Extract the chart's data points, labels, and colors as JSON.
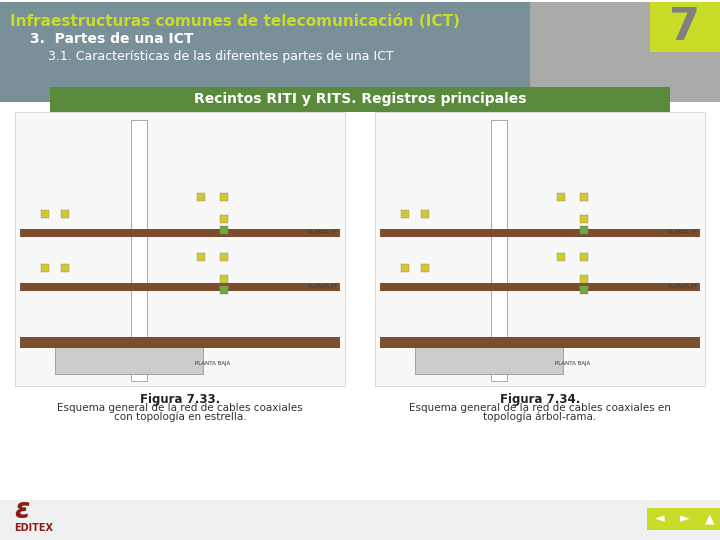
{
  "title": "Infraestructuras comunes de telecomunicación (ICT)",
  "subtitle1": "3.  Partes de una ICT",
  "subtitle2": "3.1. Características de las diferentes partes de una ICT",
  "section_number": "7",
  "banner_color": "#7a9099",
  "title_color": "#c8dc28",
  "subtitle1_color": "#ffffff",
  "subtitle2_color": "#ffffff",
  "number_bg_color": "#c8dc28",
  "number_color": "#808080",
  "green_banner_text": "Recintos RITI y RITS. Registros principales",
  "green_banner_bg": "#5a8a3c",
  "green_banner_text_color": "#ffffff",
  "fig1_title": "Figura 7.33.",
  "fig1_caption1": "Esquema general de la red de cables coaxiales",
  "fig1_caption2": "con topología en estrella.",
  "fig2_title": "Figura 7.34.",
  "fig2_caption1": "Esquema general de la red de cables coaxiales en",
  "fig2_caption2": "topología árbol-rama.",
  "footer_bg": "#ffffff",
  "editex_color": "#8b1a1a",
  "nav_button_color": "#c8dc28",
  "bg_color": "#ffffff"
}
